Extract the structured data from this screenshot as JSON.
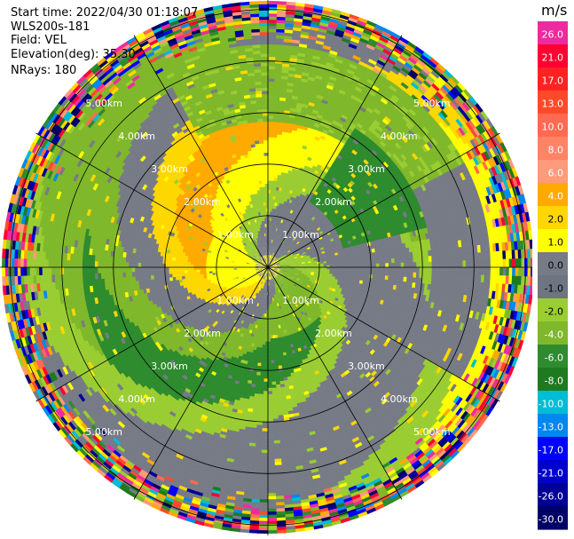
{
  "header": {
    "start_time": "Start time: 2022/04/30 01:18:07",
    "instrument": "WLS200s-181",
    "field": "Field: VEL",
    "elevation": "Elevation(deg): 35.30",
    "nrays": "NRays: 180"
  },
  "chart_data": {
    "type": "heatmap",
    "projection": "polar-ppi",
    "field": "VEL",
    "units": "m/s",
    "range_rings_km": [
      1.0,
      2.0,
      3.0,
      4.0,
      5.0
    ],
    "ring_labels": [
      "1.00km",
      "2.00km",
      "3.00km",
      "4.00km",
      "5.00km"
    ],
    "spokes_deg": [
      0,
      30,
      60,
      90,
      120,
      150,
      180,
      210,
      240,
      270,
      300,
      330
    ],
    "max_range_km": 5.2,
    "n_rays": 180,
    "colorbar": {
      "unit_label": "m/s",
      "ticks": [
        "26.0",
        "21.0",
        "17.0",
        "13.0",
        "10.0",
        "8.0",
        "6.0",
        "4.0",
        "2.0",
        "1.0",
        "0.0",
        "-1.0",
        "-2.0",
        "-4.0",
        "-6.0",
        "-8.0",
        "-10.0",
        "-13.0",
        "-17.0",
        "-21.0",
        "-26.0",
        "-30.0"
      ],
      "colors": [
        "#ee2aa0",
        "#ff0033",
        "#ff2222",
        "#ff4a2a",
        "#ff6a50",
        "#ff8466",
        "#ff9a7a",
        "#ffaa00",
        "#ffd700",
        "#ffff00",
        "#777b86",
        "#6e7480",
        "#9acd32",
        "#7fb82a",
        "#2e8b2e",
        "#1e7a1e",
        "#00bcd4",
        "#0088ee",
        "#0000ff",
        "#0000cc",
        "#000099",
        "#000066"
      ]
    },
    "pattern": "spiral velocity field: yellow/orange positive velocities on the west and south, green/gray negative velocities on the north and east, noisy multicolor returns beyond about 4.3 km"
  }
}
